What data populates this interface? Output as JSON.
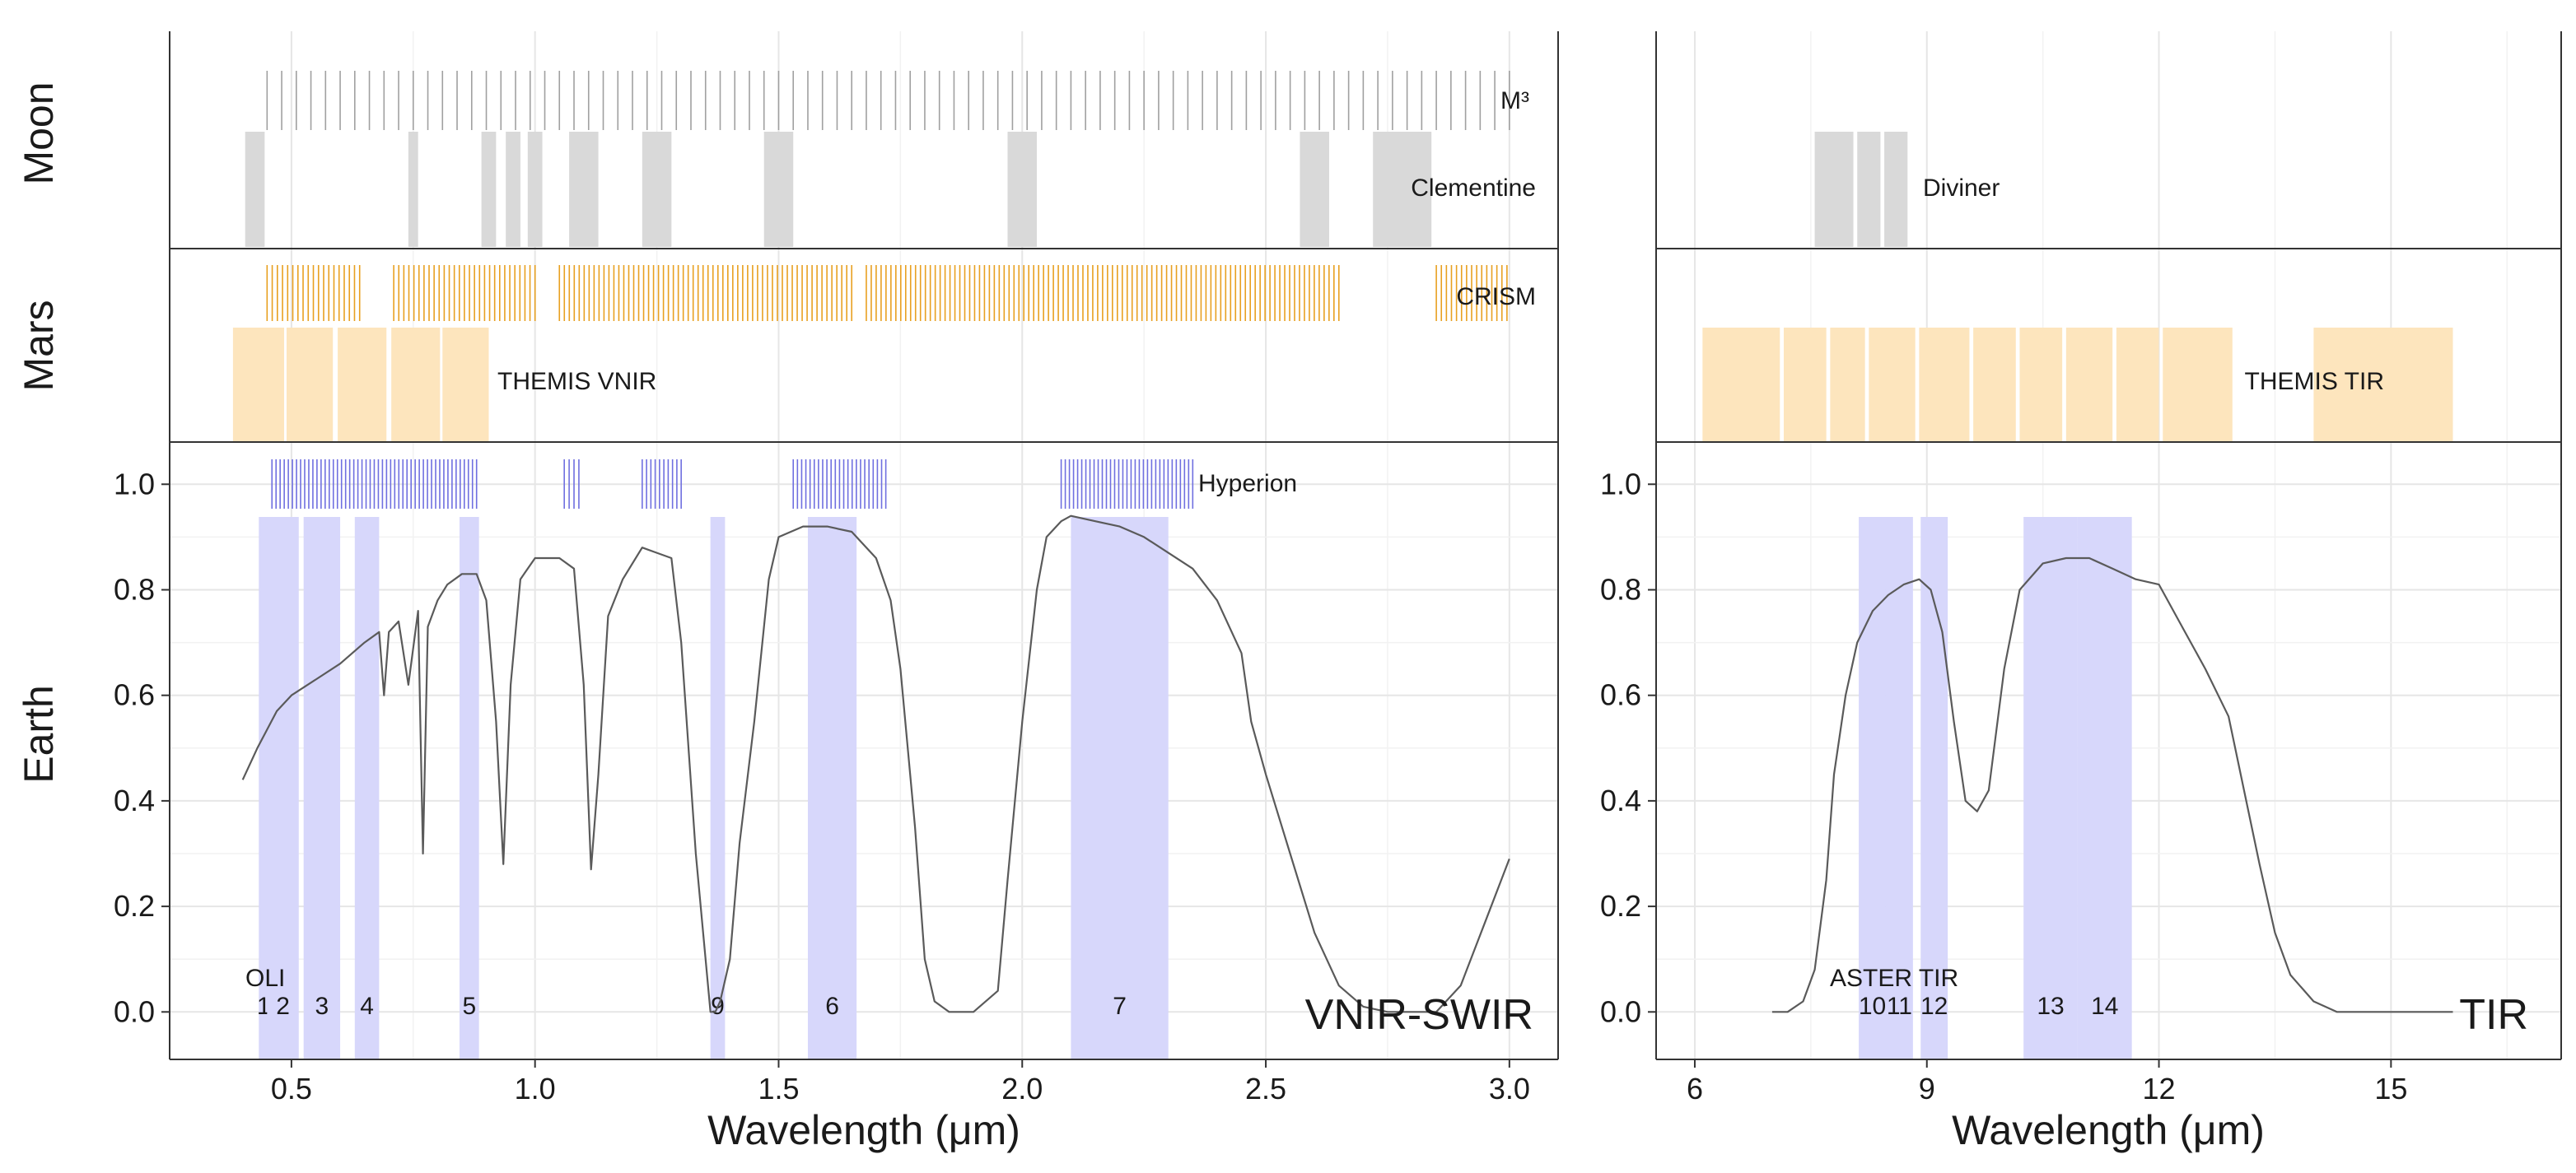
{
  "chart_data": {
    "type": "line",
    "colors": {
      "moon_fill": "#d9d9d9",
      "moon_line": "#a0a0a0",
      "mars_fill": "#fde5bd",
      "mars_line": "#e8a020",
      "earth_fill": "#d7d7fb",
      "earth_line": "#6f6fe0",
      "spectrum": "#5a5a5a",
      "grid_major": "#e6e6e6",
      "grid_minor": "#f2f2f2",
      "frame": "#333333"
    },
    "row_labels": [
      "Moon",
      "Mars",
      "Earth"
    ],
    "panels": [
      {
        "id": "vnir",
        "xlabel": "Wavelength (μm)",
        "xlim": [
          0.25,
          3.1
        ],
        "xticks": [
          0.5,
          1.0,
          1.5,
          2.0,
          2.5,
          3.0
        ],
        "xtick_labels": [
          "0.5",
          "1.0",
          "1.5",
          "2.0",
          "2.5",
          "3.0"
        ],
        "ylim": [
          -0.09,
          1.08
        ],
        "yticks": [
          0.0,
          0.2,
          0.4,
          0.6,
          0.8,
          1.0
        ],
        "ytick_labels": [
          "0.0",
          "0.2",
          "0.4",
          "0.6",
          "0.8",
          "1.0"
        ],
        "corner_label": "VNIR-SWIR",
        "moon": [
          {
            "name": "M³",
            "kind": "lines",
            "ranges": [
              [
                0.45,
                3.0
              ]
            ],
            "count": 86
          },
          {
            "name": "Clementine",
            "kind": "bands",
            "bands": [
              [
                0.405,
                0.445
              ],
              [
                0.74,
                0.76
              ],
              [
                0.89,
                0.92
              ],
              [
                0.94,
                0.97
              ],
              [
                0.985,
                1.015
              ],
              [
                1.07,
                1.13
              ],
              [
                1.22,
                1.28
              ],
              [
                1.47,
                1.53
              ],
              [
                1.97,
                2.03
              ],
              [
                2.57,
                2.63
              ],
              [
                2.72,
                2.84
              ]
            ]
          }
        ],
        "mars": [
          {
            "name": "CRISM",
            "kind": "lines",
            "ranges": [
              [
                0.45,
                0.64
              ],
              [
                0.71,
                1.0
              ],
              [
                1.05,
                1.65
              ],
              [
                1.68,
                2.65
              ],
              [
                2.85,
                2.995
              ]
            ],
            "count": 220
          },
          {
            "name": "THEMIS VNIR",
            "kind": "bands",
            "bands": [
              [
                0.38,
                0.485
              ],
              [
                0.49,
                0.585
              ],
              [
                0.595,
                0.695
              ],
              [
                0.705,
                0.805
              ],
              [
                0.81,
                0.905
              ]
            ]
          }
        ],
        "earth_lines": {
          "name": "Hyperion",
          "ranges": [
            [
              0.46,
              0.88
            ],
            [
              1.06,
              1.09
            ],
            [
              1.22,
              1.3
            ],
            [
              1.53,
              1.72
            ],
            [
              2.08,
              2.35
            ]
          ],
          "count": 120
        },
        "earth_bands_label": "OLI",
        "earth_bands": [
          {
            "label": "1",
            "lo": 0.433,
            "hi": 0.453
          },
          {
            "label": "2",
            "lo": 0.45,
            "hi": 0.515
          },
          {
            "label": "3",
            "lo": 0.525,
            "hi": 0.6
          },
          {
            "label": "4",
            "lo": 0.63,
            "hi": 0.68
          },
          {
            "label": "5",
            "lo": 0.845,
            "hi": 0.885
          },
          {
            "label": "9",
            "lo": 1.36,
            "hi": 1.39
          },
          {
            "label": "6",
            "lo": 1.56,
            "hi": 1.66
          },
          {
            "label": "7",
            "lo": 2.1,
            "hi": 2.3
          }
        ],
        "spectrum": {
          "x": [
            0.4,
            0.43,
            0.47,
            0.5,
            0.55,
            0.6,
            0.65,
            0.68,
            0.69,
            0.7,
            0.72,
            0.74,
            0.76,
            0.77,
            0.78,
            0.8,
            0.82,
            0.85,
            0.88,
            0.9,
            0.92,
            0.935,
            0.95,
            0.97,
            1.0,
            1.05,
            1.08,
            1.1,
            1.115,
            1.13,
            1.15,
            1.18,
            1.22,
            1.25,
            1.28,
            1.3,
            1.33,
            1.36,
            1.37,
            1.38,
            1.4,
            1.42,
            1.45,
            1.48,
            1.5,
            1.55,
            1.6,
            1.65,
            1.7,
            1.73,
            1.75,
            1.78,
            1.8,
            1.82,
            1.85,
            1.9,
            1.95,
            1.97,
            2.0,
            2.03,
            2.05,
            2.08,
            2.1,
            2.15,
            2.2,
            2.25,
            2.3,
            2.35,
            2.4,
            2.45,
            2.47,
            2.5,
            2.55,
            2.6,
            2.65,
            2.7,
            2.75,
            2.8,
            2.85,
            2.9,
            2.95,
            3.0
          ],
          "y": [
            0.44,
            0.5,
            0.57,
            0.6,
            0.63,
            0.66,
            0.7,
            0.72,
            0.6,
            0.72,
            0.74,
            0.62,
            0.76,
            0.3,
            0.73,
            0.78,
            0.81,
            0.83,
            0.83,
            0.78,
            0.55,
            0.28,
            0.62,
            0.82,
            0.86,
            0.86,
            0.84,
            0.62,
            0.27,
            0.45,
            0.75,
            0.82,
            0.88,
            0.87,
            0.86,
            0.7,
            0.3,
            0.0,
            0.0,
            0.02,
            0.1,
            0.32,
            0.55,
            0.82,
            0.9,
            0.92,
            0.92,
            0.91,
            0.86,
            0.78,
            0.65,
            0.35,
            0.1,
            0.02,
            0.0,
            0.0,
            0.04,
            0.25,
            0.55,
            0.8,
            0.9,
            0.93,
            0.94,
            0.93,
            0.92,
            0.9,
            0.87,
            0.84,
            0.78,
            0.68,
            0.55,
            0.45,
            0.3,
            0.15,
            0.05,
            0.01,
            0.0,
            0.0,
            0.0,
            0.05,
            0.17,
            0.29
          ]
        }
      },
      {
        "id": "tir",
        "xlabel": "Wavelength (μm)",
        "xlim": [
          5.5,
          17.2
        ],
        "xticks": [
          6,
          9,
          12,
          15
        ],
        "xtick_labels": [
          "6",
          "9",
          "12",
          "15"
        ],
        "ylim": [
          -0.09,
          1.08
        ],
        "yticks": [
          0.0,
          0.2,
          0.4,
          0.6,
          0.8,
          1.0
        ],
        "ytick_labels": [
          "0.0",
          "0.2",
          "0.4",
          "0.6",
          "0.8",
          "1.0"
        ],
        "corner_label": "TIR",
        "moon": [
          {
            "name": "Diviner",
            "kind": "bands",
            "bands": [
              [
                7.55,
                8.05
              ],
              [
                8.1,
                8.4
              ],
              [
                8.45,
                8.75
              ]
            ]
          }
        ],
        "mars": [
          {
            "name": "THEMIS TIR",
            "kind": "bands",
            "bands": [
              [
                6.1,
                7.1
              ],
              [
                7.15,
                7.7
              ],
              [
                7.75,
                8.2
              ],
              [
                8.25,
                8.85
              ],
              [
                8.9,
                9.55
              ],
              [
                9.6,
                10.15
              ],
              [
                10.2,
                10.75
              ],
              [
                10.8,
                11.4
              ],
              [
                11.45,
                12.0
              ],
              [
                12.05,
                12.95
              ],
              [
                14.0,
                15.8
              ]
            ]
          }
        ],
        "earth_bands_label": "ASTER TIR",
        "earth_bands": [
          {
            "label": "10",
            "lo": 8.12,
            "hi": 8.47
          },
          {
            "label": "11",
            "lo": 8.47,
            "hi": 8.82
          },
          {
            "label": "12",
            "lo": 8.92,
            "hi": 9.27
          },
          {
            "label": "13",
            "lo": 10.25,
            "hi": 10.95
          },
          {
            "label": "14",
            "lo": 10.95,
            "hi": 11.65
          }
        ],
        "spectrum": {
          "x": [
            7.0,
            7.2,
            7.4,
            7.55,
            7.7,
            7.8,
            7.95,
            8.1,
            8.3,
            8.5,
            8.7,
            8.9,
            9.05,
            9.2,
            9.35,
            9.5,
            9.65,
            9.8,
            10.0,
            10.2,
            10.5,
            10.8,
            11.1,
            11.4,
            11.7,
            12.0,
            12.3,
            12.6,
            12.9,
            13.1,
            13.3,
            13.5,
            13.7,
            14.0,
            14.3,
            14.7,
            15.2,
            15.8
          ],
          "y": [
            0.0,
            0.0,
            0.02,
            0.08,
            0.25,
            0.45,
            0.6,
            0.7,
            0.76,
            0.79,
            0.81,
            0.82,
            0.8,
            0.72,
            0.55,
            0.4,
            0.38,
            0.42,
            0.65,
            0.8,
            0.85,
            0.86,
            0.86,
            0.84,
            0.82,
            0.81,
            0.73,
            0.65,
            0.56,
            0.42,
            0.28,
            0.15,
            0.07,
            0.02,
            0.0,
            0.0,
            0.0,
            0.0
          ]
        }
      }
    ]
  }
}
